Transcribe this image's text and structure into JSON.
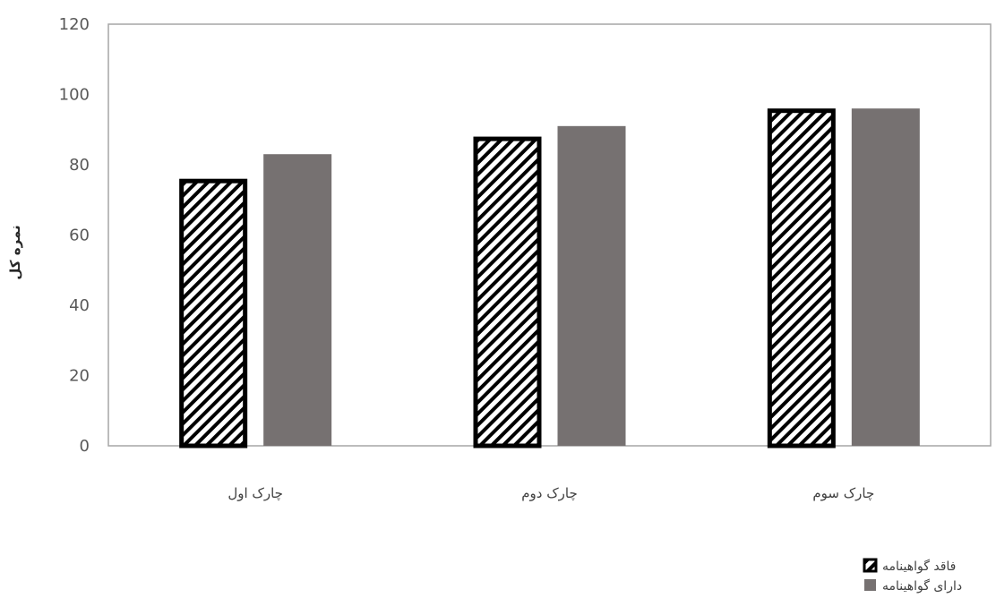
{
  "chart_data": {
    "type": "bar",
    "categories": [
      "چارک اول",
      "چارک دوم",
      "چارک سوم"
    ],
    "series": [
      {
        "name": "فاقد گواهینامه",
        "values": [
          76,
          88,
          96
        ],
        "pattern": "diagonal-hatch",
        "color": "#000000"
      },
      {
        "name": "دارای گواهینامه",
        "values": [
          83,
          91,
          96
        ],
        "pattern": "solid",
        "color": "#767171"
      }
    ],
    "ylabel": "نمره کل",
    "xlabel": "",
    "ylim": [
      0,
      120
    ],
    "yticks": [
      0,
      20,
      40,
      60,
      80,
      100,
      120
    ],
    "grid": false,
    "legend_position": "bottom-right"
  }
}
